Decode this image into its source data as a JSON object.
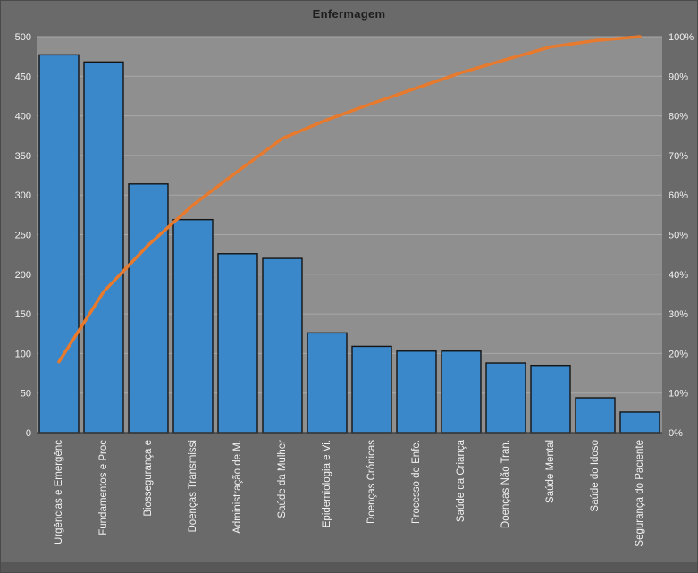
{
  "chart_data": {
    "type": "bar",
    "subtype": "pareto",
    "title": "Enfermagem",
    "categories": [
      "Urgências e Emergênc",
      "Fundamentos e Proc",
      "Biossegurança e",
      "Doenças Transmissi",
      "Administração de M.",
      "Saúde da Mulher",
      "Epidemiologia e Vi.",
      "Doenças Crónicas",
      "Processo de Enfe.",
      "Saúde da Criança",
      "Doenças Não Tran.",
      "Saúde Mental",
      "Saúde do Idoso",
      "Segurança do Paciente"
    ],
    "series": {
      "bars": [
        477,
        468,
        314,
        269,
        226,
        220,
        126,
        109,
        103,
        103,
        88,
        85,
        44,
        26
      ],
      "cumulative_pct": [
        17.9,
        35.6,
        47.4,
        57.5,
        66.0,
        74.3,
        79.0,
        83.1,
        87.0,
        90.9,
        94.2,
        97.4,
        99.0,
        100.0
      ]
    },
    "left_axis": {
      "min": 0,
      "max": 500,
      "step": 50,
      "ticks": [
        0,
        50,
        100,
        150,
        200,
        250,
        300,
        350,
        400,
        450,
        500
      ]
    },
    "right_axis": {
      "min": 0,
      "max": 100,
      "step": 10,
      "unit": "%",
      "ticks": [
        0,
        10,
        20,
        30,
        40,
        50,
        60,
        70,
        80,
        90,
        100
      ]
    },
    "grid": true,
    "legend": "none"
  },
  "colors": {
    "background": "#6a6a6a",
    "plot_background": "#8f8f8f",
    "gridline": "#a8a8a8",
    "axis_line": "#3a3a3a",
    "bar_fill": "#3a87c9",
    "bar_stroke": "#141414",
    "line": "#e87a2e",
    "axis_text": "#f2f2f2",
    "title_text": "#1d1d1d"
  }
}
